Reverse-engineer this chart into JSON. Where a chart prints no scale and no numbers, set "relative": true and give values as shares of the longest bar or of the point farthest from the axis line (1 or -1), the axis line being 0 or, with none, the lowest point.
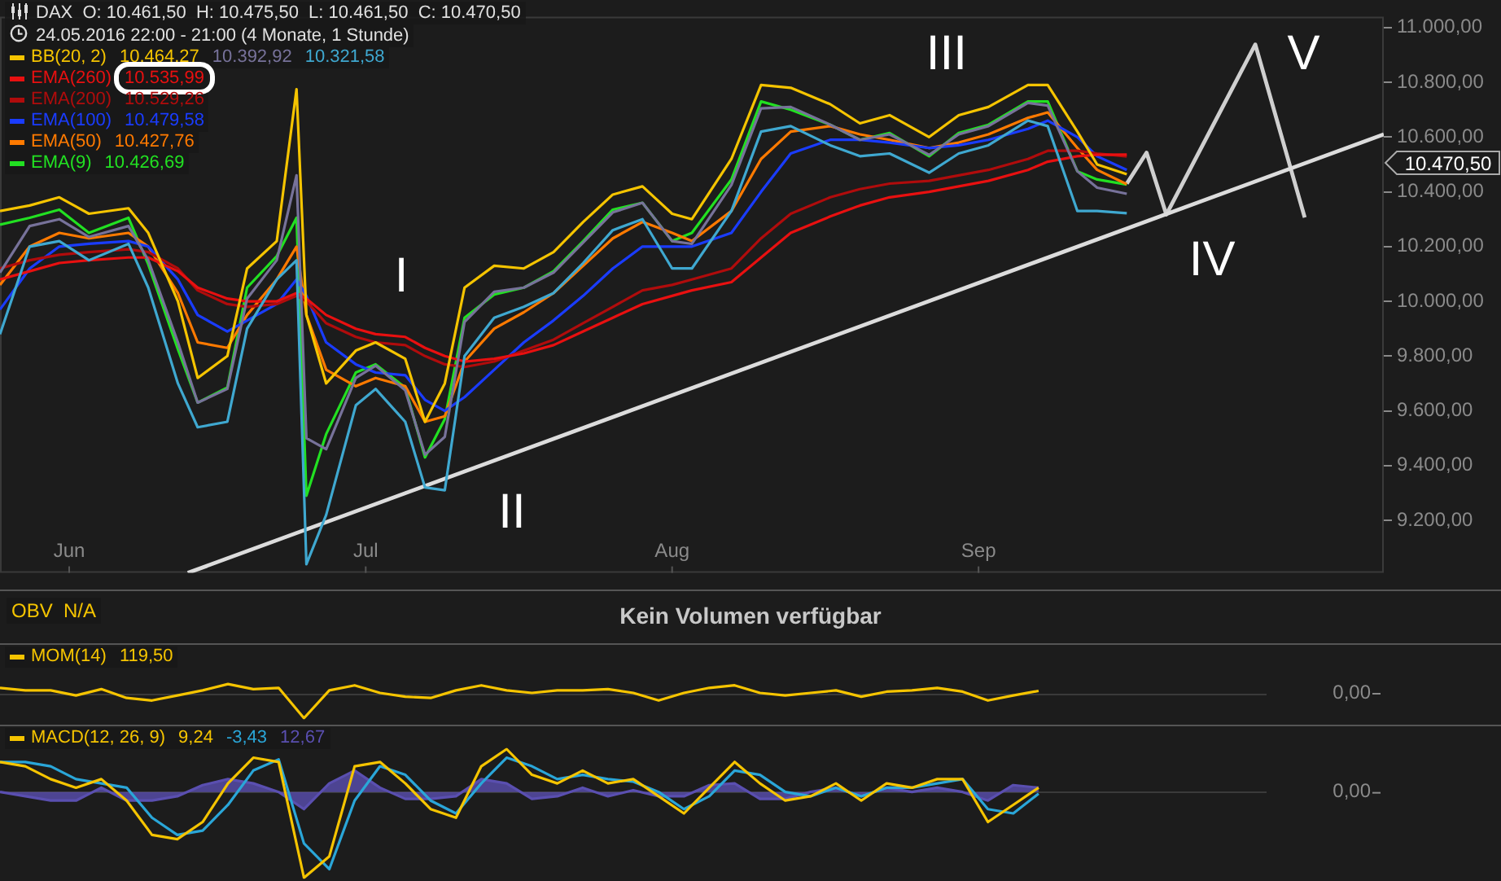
{
  "chart_data": [
    {
      "type": "line",
      "title": "DAX  O: 10.461,50  H: 10.475,50  L: 10.461,50  C: 10.470,50",
      "subtitle": "24.05.2016 22:00 - 21:00 (4 Monate, 1 Stunde)",
      "x": [
        "2016-05-25",
        "2016-05-28",
        "2016-05-31",
        "2016-06-03",
        "2016-06-07",
        "2016-06-09",
        "2016-06-12",
        "2016-06-14",
        "2016-06-17",
        "2016-06-19",
        "2016-06-22",
        "2016-06-24",
        "2016-06-25",
        "2016-06-27",
        "2016-06-30",
        "2016-07-02",
        "2016-07-05",
        "2016-07-07",
        "2016-07-09",
        "2016-07-11",
        "2016-07-14",
        "2016-07-17",
        "2016-07-20",
        "2016-07-23",
        "2016-07-26",
        "2016-07-29",
        "2016-08-01",
        "2016-08-03",
        "2016-08-07",
        "2016-08-10",
        "2016-08-13",
        "2016-08-17",
        "2016-08-20",
        "2016-08-23",
        "2016-08-27",
        "2016-08-30",
        "2016-09-02",
        "2016-09-06",
        "2016-09-08",
        "2016-09-11",
        "2016-09-13",
        "2016-09-16"
      ],
      "xlim": [
        "2016-05-25",
        "2016-10-12"
      ],
      "xticks": [
        {
          "value": "2016-06-01",
          "label": "Jun"
        },
        {
          "value": "2016-07-01",
          "label": "Jul"
        },
        {
          "value": "2016-08-01",
          "label": "Aug"
        },
        {
          "value": "2016-09-01",
          "label": "Sep"
        }
      ],
      "ylim": [
        9008,
        11040
      ],
      "yticks": [
        {
          "value": 9200,
          "label": "9.200,00"
        },
        {
          "value": 9400,
          "label": "9.400,00"
        },
        {
          "value": 9600,
          "label": "9.600,00"
        },
        {
          "value": 9800,
          "label": "9.800,00"
        },
        {
          "value": 10000,
          "label": "10.000,00"
        },
        {
          "value": 10200,
          "label": "10.200,00"
        },
        {
          "value": 10400,
          "label": "10.400,00"
        },
        {
          "value": 10600,
          "label": "10.600,00"
        },
        {
          "value": 10800,
          "label": "10.800,00"
        },
        {
          "value": 11000,
          "label": "11.000,00"
        }
      ],
      "legend": "top left",
      "marker": "none",
      "series": [
        {
          "name": "BB(20, 2)  10.464,27",
          "color": "#f5c400",
          "values": [
            10330,
            10350,
            10380,
            10320,
            10340,
            10250,
            10000,
            9720,
            9800,
            10120,
            10220,
            10775,
            9950,
            9700,
            9820,
            9850,
            9790,
            9560,
            9700,
            10050,
            10130,
            10120,
            10180,
            10290,
            10390,
            10420,
            10320,
            10300,
            10520,
            10790,
            10780,
            10720,
            10650,
            10680,
            10600,
            10680,
            10710,
            10790,
            10790,
            10620,
            10500,
            10464.27
          ]
        },
        {
          "name": "10.392,92",
          "color": "#77729a",
          "values": [
            10105,
            10275,
            10300,
            10235,
            10275,
            10150,
            9850,
            9630,
            9680,
            10010,
            10150,
            10460,
            9500,
            9460,
            9720,
            9765,
            9675,
            9440,
            9505,
            9925,
            10035,
            10050,
            10105,
            10215,
            10325,
            10360,
            10220,
            10210,
            10425,
            10705,
            10710,
            10645,
            10590,
            10610,
            10535,
            10610,
            10640,
            10725,
            10715,
            10475,
            10415,
            10392.92
          ]
        },
        {
          "name": "10.321,58",
          "color": "#3fa8d0",
          "values": [
            9880,
            10200,
            10220,
            10150,
            10210,
            10050,
            9700,
            9540,
            9560,
            9900,
            10080,
            10150,
            9040,
            9220,
            9620,
            9680,
            9560,
            9320,
            9310,
            9800,
            9940,
            9980,
            10030,
            10140,
            10260,
            10300,
            10120,
            10120,
            10330,
            10620,
            10640,
            10570,
            10530,
            10540,
            10470,
            10540,
            10570,
            10660,
            10640,
            10330,
            10330,
            10321.58
          ]
        },
        {
          "name": "EMA(260)  10.535,99",
          "color": "#e81010",
          "values": [
            10080,
            10110,
            10140,
            10150,
            10160,
            10160,
            10110,
            10050,
            10010,
            10000,
            10000,
            10030,
            10010,
            9950,
            9900,
            9880,
            9870,
            9830,
            9800,
            9780,
            9790,
            9810,
            9840,
            9890,
            9940,
            9990,
            10020,
            10040,
            10070,
            10160,
            10250,
            10310,
            10350,
            10380,
            10400,
            10420,
            10440,
            10480,
            10510,
            10530,
            10535,
            10535.99
          ]
        },
        {
          "name": "EMA(200)  10.529,26",
          "color": "#b00c0c",
          "values": [
            10120,
            10150,
            10170,
            10180,
            10190,
            10180,
            10120,
            10040,
            9990,
            9980,
            9990,
            10020,
            10000,
            9920,
            9870,
            9850,
            9840,
            9800,
            9770,
            9760,
            9780,
            9820,
            9860,
            9920,
            9980,
            10040,
            10060,
            10080,
            10120,
            10230,
            10320,
            10380,
            10410,
            10430,
            10440,
            10460,
            10480,
            10520,
            10550,
            10550,
            10540,
            10529.26
          ]
        },
        {
          "name": "EMA(100)  10.479,58",
          "color": "#1a3cff",
          "values": [
            9970,
            10120,
            10200,
            10210,
            10220,
            10200,
            10080,
            9950,
            9890,
            9930,
            9990,
            10080,
            10020,
            9850,
            9770,
            9740,
            9730,
            9640,
            9600,
            9650,
            9750,
            9850,
            9930,
            10020,
            10120,
            10200,
            10200,
            10200,
            10250,
            10400,
            10540,
            10590,
            10590,
            10580,
            10560,
            10570,
            10590,
            10630,
            10660,
            10600,
            10530,
            10479.58
          ]
        },
        {
          "name": "EMA(50)  10.427,76",
          "color": "#ff7a00",
          "values": [
            10060,
            10200,
            10250,
            10230,
            10250,
            10200,
            10030,
            9850,
            9830,
            9950,
            10080,
            10200,
            9950,
            9750,
            9690,
            9720,
            9690,
            9560,
            9580,
            9780,
            9900,
            9960,
            10030,
            10130,
            10230,
            10290,
            10250,
            10220,
            10330,
            10520,
            10620,
            10640,
            10610,
            10590,
            10560,
            10580,
            10610,
            10670,
            10690,
            10560,
            10480,
            10427.76
          ]
        },
        {
          "name": "EMA(9)  10.426,69",
          "color": "#22e022",
          "values": [
            10280,
            10305,
            10335,
            10250,
            10305,
            10135,
            9825,
            9630,
            9685,
            10050,
            10165,
            10305,
            9290,
            9515,
            9740,
            9770,
            9685,
            9430,
            9570,
            9940,
            10025,
            10050,
            10110,
            10220,
            10335,
            10360,
            10220,
            10250,
            10445,
            10730,
            10700,
            10645,
            10590,
            10615,
            10530,
            10615,
            10645,
            10730,
            10730,
            10475,
            10445,
            10426.69
          ]
        },
        {
          "color": "#dcdcdc",
          "x": [
            "2016-06-13",
            "2016-10-12"
          ],
          "values": [
            9008,
            10610
          ]
        },
        {
          "color": "#cfcfcf",
          "x": [
            "2016-09-16",
            "2016-09-18",
            "2016-09-20",
            "2016-09-29",
            "2016-10-04"
          ],
          "values": [
            10430,
            10543,
            10317,
            10938,
            10306
          ]
        }
      ],
      "annotations": [
        "I",
        "II",
        "III",
        "IV",
        "V",
        "10.470,50"
      ]
    },
    {
      "type": "other",
      "title": "Kein Volumen verfügbar",
      "annotations": [
        "OBV  N/A"
      ]
    },
    {
      "type": "line",
      "relative": true,
      "legend": "top left",
      "marker": "none",
      "categories": [
        null,
        null,
        null,
        null,
        null,
        null,
        null,
        null,
        null,
        null,
        null,
        null,
        null,
        null,
        null,
        null,
        null,
        null,
        null,
        null,
        null,
        null,
        null,
        null,
        null,
        null,
        null,
        null,
        null,
        null,
        null,
        null,
        null,
        null,
        null,
        null,
        null,
        null,
        null,
        null,
        null,
        null,
        null,
        null,
        null,
        null,
        null,
        null,
        null,
        null,
        null
      ],
      "annotations": [
        "0,00"
      ],
      "series": [
        {
          "name": "MOM(14)  119,50",
          "color": "#f5c400",
          "values": [
            0.2,
            0.1,
            0.1,
            -0.1,
            0.15,
            -0.2,
            -0.3,
            -0.1,
            0.1,
            0.35,
            0.15,
            0.2,
            -1,
            0.1,
            0.3,
            0,
            -0.15,
            -0.2,
            0.1,
            0.3,
            0.1,
            0,
            0.1,
            0.1,
            0.15,
            0,
            -0.3,
            0,
            0.2,
            0.3,
            0,
            -0.1,
            0,
            0.1,
            -0.15,
            0.05,
            0.1,
            0.2,
            0.05,
            -0.3,
            -0.1,
            0.08,
            null,
            null,
            null,
            null,
            null,
            null,
            null,
            null,
            null
          ]
        }
      ]
    },
    {
      "type": "line",
      "relative": true,
      "legend": "top left",
      "marker": "none",
      "categories": [
        null,
        null,
        null,
        null,
        null,
        null,
        null,
        null,
        null,
        null,
        null,
        null,
        null,
        null,
        null,
        null,
        null,
        null,
        null,
        null,
        null,
        null,
        null,
        null,
        null,
        null,
        null,
        null,
        null,
        null,
        null,
        null,
        null,
        null,
        null,
        null,
        null,
        null,
        null,
        null,
        null,
        null,
        null,
        null,
        null,
        null,
        null,
        null,
        null,
        null,
        null
      ],
      "annotations": [
        "0,00"
      ],
      "series": [
        {
          "name": "MACD(12, 26, 9)  9,24",
          "color": "#f5c400",
          "values": [
            0.35,
            0.3,
            0.15,
            0.05,
            0.15,
            -0.1,
            -0.5,
            -0.55,
            -0.35,
            0.1,
            0.4,
            0.35,
            -1,
            -0.75,
            0.3,
            0.35,
            0.1,
            -0.2,
            -0.3,
            0.3,
            0.5,
            0.2,
            0.1,
            0.25,
            0.1,
            0.15,
            -0.05,
            -0.25,
            0.05,
            0.35,
            0.1,
            -0.1,
            -0.05,
            0.1,
            -0.1,
            0.1,
            0.05,
            0.15,
            0.15,
            -0.35,
            -0.15,
            0.05,
            null,
            null,
            null,
            null,
            null,
            null,
            null,
            null,
            null
          ]
        },
        {
          "name": "-3,43",
          "color": "#2aa6d8",
          "values": [
            0.35,
            0.35,
            0.3,
            0.15,
            0.1,
            0.05,
            -0.3,
            -0.5,
            -0.45,
            -0.15,
            0.25,
            0.38,
            -0.6,
            -0.9,
            -0.1,
            0.3,
            0.2,
            -0.1,
            -0.25,
            0.1,
            0.4,
            0.3,
            0.15,
            0.2,
            0.15,
            0.12,
            0,
            -0.2,
            -0.05,
            0.25,
            0.2,
            0,
            -0.05,
            0.05,
            -0.05,
            0.05,
            0.05,
            0.1,
            0.15,
            -0.2,
            -0.25,
            -0.02,
            null,
            null,
            null,
            null,
            null,
            null,
            null,
            null,
            null
          ]
        },
        {
          "name": "12,67",
          "type": "area",
          "color": "#5a4fb0",
          "values": [
            0,
            -0.05,
            -0.1,
            -0.1,
            0.05,
            -0.1,
            -0.1,
            -0.05,
            0.08,
            0.15,
            0.1,
            0,
            -0.2,
            0.1,
            0.25,
            0.05,
            -0.08,
            -0.08,
            -0.05,
            0.15,
            0.1,
            -0.08,
            -0.05,
            0.05,
            -0.05,
            0.02,
            -0.05,
            -0.05,
            0.08,
            0.1,
            -0.08,
            -0.08,
            0,
            0.05,
            -0.05,
            0.05,
            0,
            0.05,
            0,
            -0.1,
            0.08,
            0.05,
            null,
            null,
            null,
            null,
            null,
            null,
            null,
            null,
            null
          ]
        }
      ]
    }
  ]
}
